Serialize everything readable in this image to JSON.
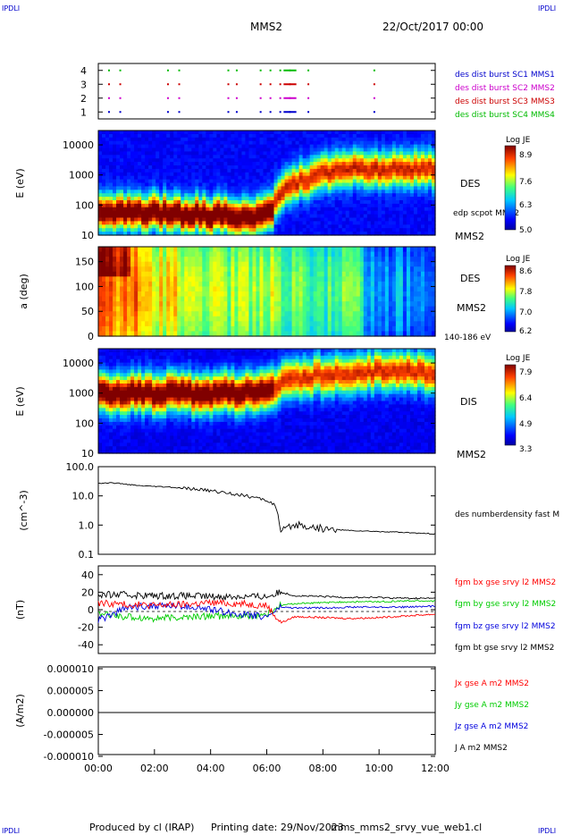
{
  "header": {
    "corner_left_top": "IPDLI",
    "corner_right_top": "IPDLI",
    "corner_left_bottom": "IPDLI",
    "corner_right_bottom": "IPDLI",
    "spacecraft": "MMS2",
    "datetime": "22/Oct/2017 00:00"
  },
  "footer": {
    "produced_by": "Produced by cl (IRAP)",
    "printing_date": "Printing date: 29/Nov/2023",
    "script": "mms_mms2_srvy_vue_web1.cl"
  },
  "x_axis": {
    "ticks": [
      "00:00",
      "02:00",
      "04:00",
      "06:00",
      "08:00",
      "10:00",
      "12:00"
    ],
    "range_hours": [
      0,
      12
    ]
  },
  "panels": {
    "burst": {
      "y_ticks": [
        "4",
        "3",
        "2",
        "1"
      ],
      "legend": [
        {
          "label": "des dist burst SC1 MMS1",
          "color": "#0000cc"
        },
        {
          "label": "des dist burst SC2 MMS2",
          "color": "#cc00cc"
        },
        {
          "label": "des dist burst SC3 MMS3",
          "color": "#cc0000"
        },
        {
          "label": "des dist burst SC4 MMS4",
          "color": "#00bb00"
        }
      ]
    },
    "des_energy": {
      "ylabel": "E (eV)",
      "y_ticks": [
        "10000",
        "1000",
        "100",
        "10"
      ],
      "right_label": "DES",
      "right_label2": "MMS2",
      "overlay_label": "edp scpot MMS2",
      "cbar_title": "Log JE",
      "cbar_ticks": [
        "8.9",
        "7.6",
        "6.3",
        "5.0"
      ]
    },
    "des_pitch": {
      "ylabel": "a (deg)",
      "y_ticks": [
        "150",
        "100",
        "50",
        "0"
      ],
      "right_label": "DES",
      "right_label2": "MMS2",
      "energy_range": "140-186 eV",
      "cbar_title": "Log JE",
      "cbar_ticks": [
        "8.6",
        "7.8",
        "7.0",
        "6.2"
      ]
    },
    "dis_energy": {
      "ylabel": "E (eV)",
      "y_ticks": [
        "10000",
        "1000",
        "100",
        "10"
      ],
      "right_label": "DIS",
      "right_label2": "MMS2",
      "cbar_title": "Log JE",
      "cbar_ticks": [
        "7.9",
        "6.4",
        "4.9",
        "3.3"
      ]
    },
    "density": {
      "ylabel": "(cm^-3)",
      "y_ticks": [
        "100.0",
        "10.0",
        "1.0",
        "0.1"
      ],
      "series_label": "des numberdensity fast M"
    },
    "field": {
      "ylabel": "(nT)",
      "y_ticks": [
        "40",
        "20",
        "0",
        "-20",
        "-40"
      ],
      "legend": [
        {
          "label": "fgm bx gse srvy l2 MMS2",
          "color": "#ff0000"
        },
        {
          "label": "fgm by gse srvy l2 MMS2",
          "color": "#00cc00"
        },
        {
          "label": "fgm bz gse srvy l2 MMS2",
          "color": "#0000dd"
        },
        {
          "label": "fgm bt gse srvy l2 MMS2",
          "color": "#000000"
        }
      ]
    },
    "current": {
      "ylabel": "(A/m2)",
      "y_ticks": [
        "0.000010",
        "0.000005",
        "0.000000",
        "-0.000005",
        "-0.000010"
      ],
      "legend": [
        {
          "label": "Jx gse A m2 MMS2",
          "color": "#ff0000"
        },
        {
          "label": "Jy gse A m2 MMS2",
          "color": "#00cc00"
        },
        {
          "label": "Jz gse A m2 MMS2",
          "color": "#0000dd"
        },
        {
          "label": "J A m2 MMS2",
          "color": "#000000"
        }
      ]
    }
  },
  "chart_data": [
    {
      "type": "scatter",
      "title": "des dist burst",
      "x_unit": "hours",
      "series": [
        {
          "name": "des dist burst SC1 MMS1",
          "y": 1,
          "x": [
            0.35,
            0.75,
            2.45,
            2.85,
            4.6,
            4.9,
            5.75,
            6.1,
            6.45,
            6.6,
            6.8,
            7.45,
            9.8
          ]
        },
        {
          "name": "des dist burst SC2 MMS2",
          "y": 2,
          "x": [
            0.35,
            0.75,
            2.45,
            2.85,
            4.6,
            4.9,
            5.75,
            6.1,
            6.45,
            6.6,
            6.8,
            7.45,
            9.8
          ]
        },
        {
          "name": "des dist burst SC3 MMS3",
          "y": 3,
          "x": [
            0.35,
            0.75,
            2.45,
            2.85,
            4.6,
            4.9,
            5.75,
            6.1,
            6.45,
            6.6,
            6.8,
            7.45,
            9.8
          ]
        },
        {
          "name": "des dist burst SC4 MMS4",
          "y": 4,
          "x": [
            0.35,
            0.75,
            2.45,
            2.85,
            4.6,
            4.9,
            5.75,
            6.1,
            6.45,
            6.6,
            6.8,
            7.45,
            9.8
          ]
        }
      ],
      "ylim": [
        0.5,
        4.5
      ]
    },
    {
      "type": "heatmap",
      "title": "DES energy spectrogram",
      "ylabel": "E (eV)",
      "yscale": "log",
      "ylim": [
        10,
        30000
      ],
      "colorbar": "Log JE",
      "clim": [
        5.0,
        8.9
      ],
      "peak_energy_eV": [
        {
          "t": 0,
          "E": 60
        },
        {
          "t": 1,
          "E": 60
        },
        {
          "t": 2,
          "E": 55
        },
        {
          "t": 3,
          "E": 50
        },
        {
          "t": 4,
          "E": 45
        },
        {
          "t": 5,
          "E": 45
        },
        {
          "t": 6,
          "E": 45
        },
        {
          "t": 6.5,
          "E": 200
        },
        {
          "t": 7,
          "E": 600
        },
        {
          "t": 8,
          "E": 1000
        },
        {
          "t": 9,
          "E": 1500
        },
        {
          "t": 10,
          "E": 1500
        },
        {
          "t": 11,
          "E": 1500
        },
        {
          "t": 12,
          "E": 1500
        }
      ]
    },
    {
      "type": "heatmap",
      "title": "DES pitch angle 140-186 eV",
      "ylabel": "a (deg)",
      "ylim": [
        0,
        180
      ],
      "colorbar": "Log JE",
      "clim": [
        6.2,
        8.6
      ]
    },
    {
      "type": "heatmap",
      "title": "DIS energy spectrogram",
      "ylabel": "E (eV)",
      "yscale": "log",
      "ylim": [
        10,
        30000
      ],
      "colorbar": "Log JE",
      "clim": [
        3.3,
        7.9
      ],
      "peak_energy_eV": [
        {
          "t": 0,
          "E": 900
        },
        {
          "t": 1,
          "E": 1000
        },
        {
          "t": 2,
          "E": 1000
        },
        {
          "t": 3,
          "E": 1000
        },
        {
          "t": 4,
          "E": 1000
        },
        {
          "t": 5,
          "E": 1000
        },
        {
          "t": 6,
          "E": 1000
        },
        {
          "t": 6.5,
          "E": 2000
        },
        {
          "t": 7,
          "E": 3000
        },
        {
          "t": 8,
          "E": 4000
        },
        {
          "t": 9,
          "E": 4500
        },
        {
          "t": 10,
          "E": 5000
        },
        {
          "t": 11,
          "E": 5000
        },
        {
          "t": 12,
          "E": 5000
        }
      ]
    },
    {
      "type": "line",
      "title": "des numberdensity fast M",
      "ylabel": "(cm^-3)",
      "yscale": "log",
      "ylim": [
        0.1,
        100
      ],
      "x": [
        0,
        0.5,
        1,
        1.5,
        2,
        2.5,
        3,
        3.5,
        4,
        4.5,
        5,
        5.5,
        6,
        6.3,
        6.5,
        6.8,
        7,
        7.5,
        8,
        8.5,
        9,
        9.5,
        10,
        10.5,
        11,
        11.5,
        12
      ],
      "y": [
        27,
        28,
        25,
        22,
        21,
        20,
        18,
        17,
        15,
        13,
        11,
        9,
        7,
        5,
        0.6,
        0.8,
        1.0,
        0.9,
        0.75,
        0.7,
        0.65,
        0.62,
        0.6,
        0.58,
        0.55,
        0.52,
        0.5
      ]
    },
    {
      "type": "line",
      "title": "fgm gse srvy l2 MMS2",
      "ylabel": "(nT)",
      "ylim": [
        -50,
        50
      ],
      "x": [
        0,
        1,
        2,
        3,
        4,
        5,
        6,
        6.5,
        7,
        8,
        9,
        10,
        11,
        12
      ],
      "series": [
        {
          "name": "fgm bx gse srvy l2 MMS2",
          "values": [
            8,
            6,
            5,
            6,
            8,
            7,
            5,
            -15,
            -8,
            -9,
            -10,
            -9,
            -7,
            -5
          ]
        },
        {
          "name": "fgm by gse srvy l2 MMS2",
          "values": [
            -5,
            -8,
            -10,
            -9,
            -7,
            -8,
            -6,
            5,
            7,
            8,
            9,
            9,
            10,
            10
          ]
        },
        {
          "name": "fgm bz gse srvy l2 MMS2",
          "values": [
            -12,
            2,
            5,
            4,
            0,
            -5,
            -8,
            3,
            2,
            2,
            3,
            3,
            3,
            4
          ]
        },
        {
          "name": "fgm bt gse srvy l2 MMS2",
          "values": [
            17,
            17,
            16,
            16,
            15,
            15,
            15,
            20,
            16,
            15,
            14,
            14,
            13,
            13
          ]
        }
      ]
    },
    {
      "type": "line",
      "title": "J A m2 MMS2",
      "ylabel": "(A/m2)",
      "ylim": [
        -1e-05,
        1e-05
      ],
      "x": [
        0,
        2,
        4,
        6,
        8,
        10,
        12
      ],
      "series": [
        {
          "name": "Jx gse A m2 MMS2",
          "values": [
            0,
            0,
            0,
            0,
            0,
            0,
            0
          ]
        },
        {
          "name": "Jy gse A m2 MMS2",
          "values": [
            0,
            0,
            0,
            0,
            0,
            0,
            0
          ]
        },
        {
          "name": "Jz gse A m2 MMS2",
          "values": [
            0,
            0,
            0,
            0,
            0,
            0,
            0
          ]
        },
        {
          "name": "J A m2 MMS2",
          "values": [
            0,
            0,
            0,
            0,
            0,
            0,
            0
          ]
        }
      ]
    }
  ]
}
